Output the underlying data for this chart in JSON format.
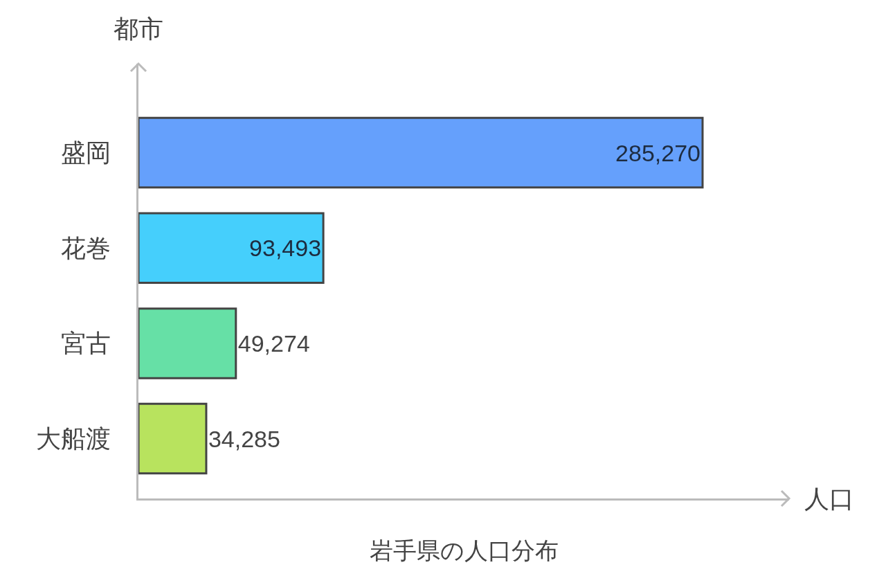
{
  "chart_data": {
    "type": "bar",
    "orientation": "horizontal",
    "title": "岩手県の人口分布",
    "xlabel": "人口",
    "ylabel": "都市",
    "categories": [
      "盛岡",
      "花巻",
      "宮古",
      "大船渡"
    ],
    "values": [
      285270,
      93493,
      49274,
      34285
    ],
    "value_labels": [
      "285,270",
      "93,493",
      "49,274",
      "34,285"
    ],
    "colors": [
      "#65a0fc",
      "#45cffc",
      "#66e0a6",
      "#b8e35e"
    ],
    "tick_labels": "y"
  }
}
